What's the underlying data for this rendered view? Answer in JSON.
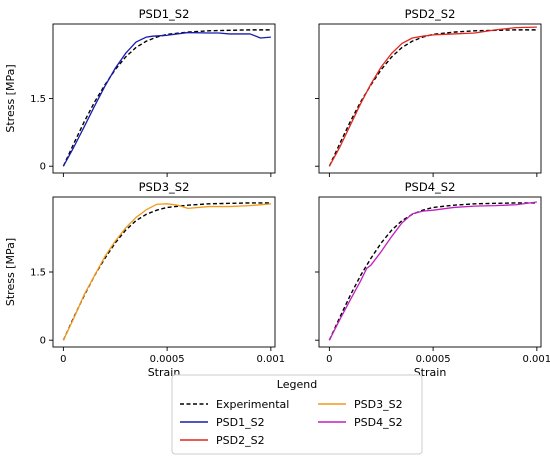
{
  "chart_data": [
    {
      "type": "line",
      "title": "PSD1_S2",
      "xlabel": "",
      "ylabel": "Stress [MPa]",
      "xlim": [
        -5e-05,
        0.00102
      ],
      "ylim": [
        -0.15,
        3.15
      ],
      "xticks": [
        0,
        0.0005,
        0.001
      ],
      "xtick_labels": [
        "",
        "",
        ""
      ],
      "yticks": [
        0,
        1.5
      ],
      "ytick_labels": [
        "0",
        "1.5"
      ],
      "series": [
        {
          "name": "Experimental",
          "style": "dashed",
          "color": "#000000",
          "x": [
            0,
            5e-05,
            0.0001,
            0.00015,
            0.0002,
            0.00025,
            0.0003,
            0.00035,
            0.0004,
            0.00045,
            0.0005,
            0.0006,
            0.0007,
            0.0008,
            0.0009,
            0.001
          ],
          "y": [
            0,
            0.5,
            0.98,
            1.42,
            1.8,
            2.14,
            2.42,
            2.63,
            2.77,
            2.86,
            2.92,
            2.97,
            3.0,
            3.01,
            3.02,
            3.02
          ]
        },
        {
          "name": "PSD1_S2",
          "style": "solid",
          "color": "#1a1aaf",
          "x": [
            0,
            5e-05,
            0.0001,
            0.00015,
            0.0002,
            0.00025,
            0.0003,
            0.00035,
            0.0004,
            0.00043,
            0.0005,
            0.0006,
            0.0007,
            0.00075,
            0.0008,
            0.0009,
            0.00095,
            0.001
          ],
          "y": [
            0,
            0.42,
            0.87,
            1.33,
            1.77,
            2.17,
            2.5,
            2.75,
            2.86,
            2.88,
            2.9,
            2.96,
            2.95,
            2.95,
            2.93,
            2.93,
            2.84,
            2.86
          ]
        }
      ]
    },
    {
      "type": "line",
      "title": "PSD2_S2",
      "xlabel": "",
      "ylabel": "",
      "xlim": [
        -5e-05,
        0.00102
      ],
      "ylim": [
        -0.15,
        3.15
      ],
      "xticks": [
        0,
        0.0005,
        0.001
      ],
      "xtick_labels": [
        "",
        "",
        ""
      ],
      "yticks": [
        0,
        1.5
      ],
      "ytick_labels": [
        "",
        ""
      ],
      "series": [
        {
          "name": "Experimental",
          "style": "dashed",
          "color": "#000000",
          "x": [
            0,
            5e-05,
            0.0001,
            0.00015,
            0.0002,
            0.00025,
            0.0003,
            0.00035,
            0.0004,
            0.00045,
            0.0005,
            0.0006,
            0.0007,
            0.0008,
            0.0009,
            0.001
          ],
          "y": [
            0,
            0.5,
            0.98,
            1.42,
            1.8,
            2.14,
            2.42,
            2.63,
            2.77,
            2.86,
            2.92,
            2.97,
            3.0,
            3.01,
            3.02,
            3.02
          ]
        },
        {
          "name": "PSD2_S2",
          "style": "solid",
          "color": "#e3261f",
          "x": [
            0,
            5e-05,
            0.0001,
            0.00015,
            0.0002,
            0.00025,
            0.0003,
            0.00035,
            0.0004,
            0.00045,
            0.0005,
            0.0006,
            0.0007,
            0.0008,
            0.0009,
            0.001
          ],
          "y": [
            0,
            0.42,
            0.9,
            1.38,
            1.82,
            2.2,
            2.5,
            2.72,
            2.84,
            2.88,
            2.91,
            2.93,
            2.95,
            3.02,
            3.07,
            3.08
          ]
        }
      ]
    },
    {
      "type": "line",
      "title": "PSD3_S2",
      "xlabel": "Strain",
      "ylabel": "Stress [MPa]",
      "xlim": [
        -5e-05,
        0.00102
      ],
      "ylim": [
        -0.15,
        3.15
      ],
      "xticks": [
        0,
        0.0005,
        0.001
      ],
      "xtick_labels": [
        "0",
        "0.0005",
        "0.001"
      ],
      "yticks": [
        0,
        1.5
      ],
      "ytick_labels": [
        "0",
        "1.5"
      ],
      "series": [
        {
          "name": "Experimental",
          "style": "dashed",
          "color": "#000000",
          "x": [
            0,
            5e-05,
            0.0001,
            0.00015,
            0.0002,
            0.00025,
            0.0003,
            0.00035,
            0.0004,
            0.00045,
            0.0005,
            0.0006,
            0.0007,
            0.0008,
            0.0009,
            0.001
          ],
          "y": [
            0,
            0.5,
            0.98,
            1.42,
            1.8,
            2.14,
            2.42,
            2.63,
            2.77,
            2.86,
            2.92,
            2.97,
            3.0,
            3.01,
            3.02,
            3.02
          ]
        },
        {
          "name": "PSD3_S2",
          "style": "solid",
          "color": "#f39a1b",
          "x": [
            0,
            5e-05,
            0.0001,
            0.00015,
            0.0002,
            0.00025,
            0.0003,
            0.00035,
            0.0004,
            0.00045,
            0.0005,
            0.00055,
            0.0006,
            0.0007,
            0.0008,
            0.0009,
            0.001
          ],
          "y": [
            0,
            0.48,
            1.0,
            1.42,
            1.84,
            2.18,
            2.47,
            2.7,
            2.87,
            2.99,
            3.0,
            2.97,
            2.9,
            2.94,
            2.94,
            2.96,
            3.0
          ]
        }
      ]
    },
    {
      "type": "line",
      "title": "PSD4_S2",
      "xlabel": "Strain",
      "ylabel": "",
      "xlim": [
        -5e-05,
        0.00102
      ],
      "ylim": [
        -0.15,
        3.15
      ],
      "xticks": [
        0,
        0.0005,
        0.001
      ],
      "xtick_labels": [
        "0",
        "0.0005",
        "0.001"
      ],
      "yticks": [
        0,
        1.5
      ],
      "ytick_labels": [
        "",
        ""
      ],
      "series": [
        {
          "name": "Experimental",
          "style": "dashed",
          "color": "#000000",
          "x": [
            0,
            5e-05,
            0.0001,
            0.00015,
            0.0002,
            0.00025,
            0.0003,
            0.00035,
            0.0004,
            0.00045,
            0.0005,
            0.0006,
            0.0007,
            0.0008,
            0.0009,
            0.001
          ],
          "y": [
            0,
            0.5,
            0.98,
            1.42,
            1.8,
            2.14,
            2.42,
            2.63,
            2.77,
            2.86,
            2.92,
            2.97,
            3.0,
            3.01,
            3.02,
            3.02
          ]
        },
        {
          "name": "PSD4_S2",
          "style": "solid",
          "color": "#c21fc2",
          "x": [
            0,
            5e-05,
            0.0001,
            0.00015,
            0.00018,
            0.0002,
            0.00025,
            0.0003,
            0.00035,
            0.0004,
            0.00045,
            0.0005,
            0.0006,
            0.0007,
            0.0008,
            0.0009,
            0.001
          ],
          "y": [
            0,
            0.45,
            0.88,
            1.3,
            1.58,
            1.65,
            1.95,
            2.28,
            2.58,
            2.78,
            2.84,
            2.86,
            2.92,
            2.95,
            2.96,
            2.98,
            3.04
          ]
        }
      ]
    }
  ],
  "legend": {
    "title": "Legend",
    "entries": [
      {
        "label": "Experimental",
        "color": "#000000",
        "style": "dashed"
      },
      {
        "label": "PSD1_S2",
        "color": "#1a1aaf",
        "style": "solid"
      },
      {
        "label": "PSD2_S2",
        "color": "#e3261f",
        "style": "solid"
      },
      {
        "label": "PSD3_S2",
        "color": "#f39a1b",
        "style": "solid"
      },
      {
        "label": "PSD4_S2",
        "color": "#c21fc2",
        "style": "solid"
      }
    ]
  }
}
